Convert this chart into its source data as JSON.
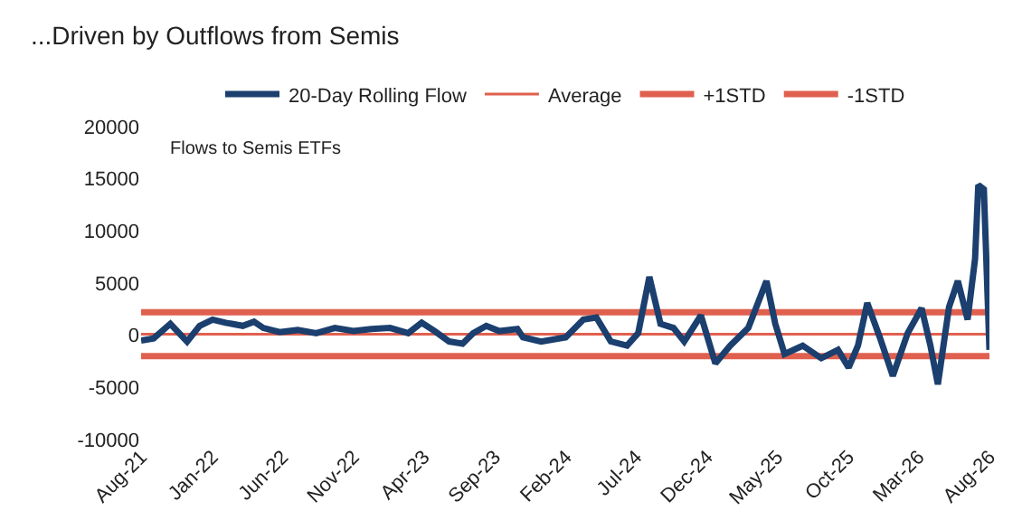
{
  "chart_data": {
    "type": "line",
    "title": "...Driven by Outflows from Semis",
    "annotations": [
      "Flows to Semis ETFs"
    ],
    "x": [
      "2021-08-01",
      "2021-08-28",
      "2021-10-03",
      "2021-11-08",
      "2021-12-05",
      "2022-01-02",
      "2022-01-30",
      "2022-03-08",
      "2022-04-01",
      "2022-04-21",
      "2022-05-26",
      "2022-07-04",
      "2022-08-13",
      "2022-09-22",
      "2022-11-01",
      "2022-12-10",
      "2023-01-19",
      "2023-02-27",
      "2023-03-28",
      "2023-04-25",
      "2023-05-26",
      "2023-06-24",
      "2023-07-17",
      "2023-08-14",
      "2023-09-11",
      "2023-10-20",
      "2023-11-01",
      "2023-12-10",
      "2024-02-01",
      "2024-03-10",
      "2024-04-07",
      "2024-05-08",
      "2024-06-12",
      "2024-07-06",
      "2024-07-30",
      "2024-08-23",
      "2024-09-20",
      "2024-10-13",
      "2024-11-18",
      "2024-12-19",
      "2025-01-20",
      "2025-02-28",
      "2025-04-08",
      "2025-04-27",
      "2025-05-17",
      "2025-06-25",
      "2025-08-04",
      "2025-09-09",
      "2025-10-02",
      "2025-10-22",
      "2025-11-11",
      "2025-12-08",
      "2026-01-05",
      "2026-02-06",
      "2026-03-08",
      "2026-03-27",
      "2026-04-12",
      "2026-05-06",
      "2026-05-25",
      "2026-06-15",
      "2026-07-01",
      "2026-07-08",
      "2026-07-20",
      "2026-08-01"
    ],
    "series": [
      {
        "name": "20-Day Rolling Flow",
        "color": "#1b3f6e",
        "values": [
          -500,
          -300,
          1100,
          -600,
          900,
          1500,
          1200,
          900,
          1300,
          700,
          300,
          500,
          200,
          700,
          400,
          600,
          700,
          200,
          1200,
          400,
          -600,
          -800,
          200,
          900,
          400,
          600,
          -200,
          -600,
          -200,
          1500,
          1700,
          -600,
          -1000,
          200,
          5600,
          1100,
          700,
          -600,
          1900,
          -2700,
          -1000,
          700,
          5200,
          1100,
          -1800,
          -1000,
          -2200,
          -1400,
          -3100,
          -1000,
          3100,
          -200,
          -3900,
          200,
          2600,
          -1000,
          -4700,
          2700,
          5200,
          1500,
          7300,
          14400,
          14000,
          -1400
        ]
      }
    ],
    "ref_lines": [
      {
        "axis": "y",
        "value": 100,
        "label": "Average",
        "color": "#e0604f"
      },
      {
        "axis": "y",
        "value": 2200,
        "label": "+1STD",
        "color": "#e0604f"
      },
      {
        "axis": "y",
        "value": -2000,
        "label": "-1STD",
        "color": "#e0604f"
      }
    ],
    "xlim": [
      "2021-08-01",
      "2026-08-01"
    ],
    "xticks": [
      {
        "value": "2021-08-01",
        "label": "Aug-21"
      },
      {
        "value": "2022-01-01",
        "label": "Jan-22"
      },
      {
        "value": "2022-06-01",
        "label": "Jun-22"
      },
      {
        "value": "2022-11-01",
        "label": "Nov-22"
      },
      {
        "value": "2023-04-01",
        "label": "Apr-23"
      },
      {
        "value": "2023-09-01",
        "label": "Sep-23"
      },
      {
        "value": "2024-02-01",
        "label": "Feb-24"
      },
      {
        "value": "2024-07-01",
        "label": "Jul-24"
      },
      {
        "value": "2024-12-01",
        "label": "Dec-24"
      },
      {
        "value": "2025-05-01",
        "label": "May-25"
      },
      {
        "value": "2025-10-01",
        "label": "Oct-25"
      },
      {
        "value": "2026-03-01",
        "label": "Mar-26"
      },
      {
        "value": "2026-08-01",
        "label": "Aug-26"
      }
    ],
    "ylim": [
      -10000,
      20000
    ],
    "yticks": [
      -10000,
      -5000,
      0,
      5000,
      10000,
      15000,
      20000
    ],
    "grid": false,
    "legend": "top",
    "marker": "none",
    "line_style": "solid"
  }
}
